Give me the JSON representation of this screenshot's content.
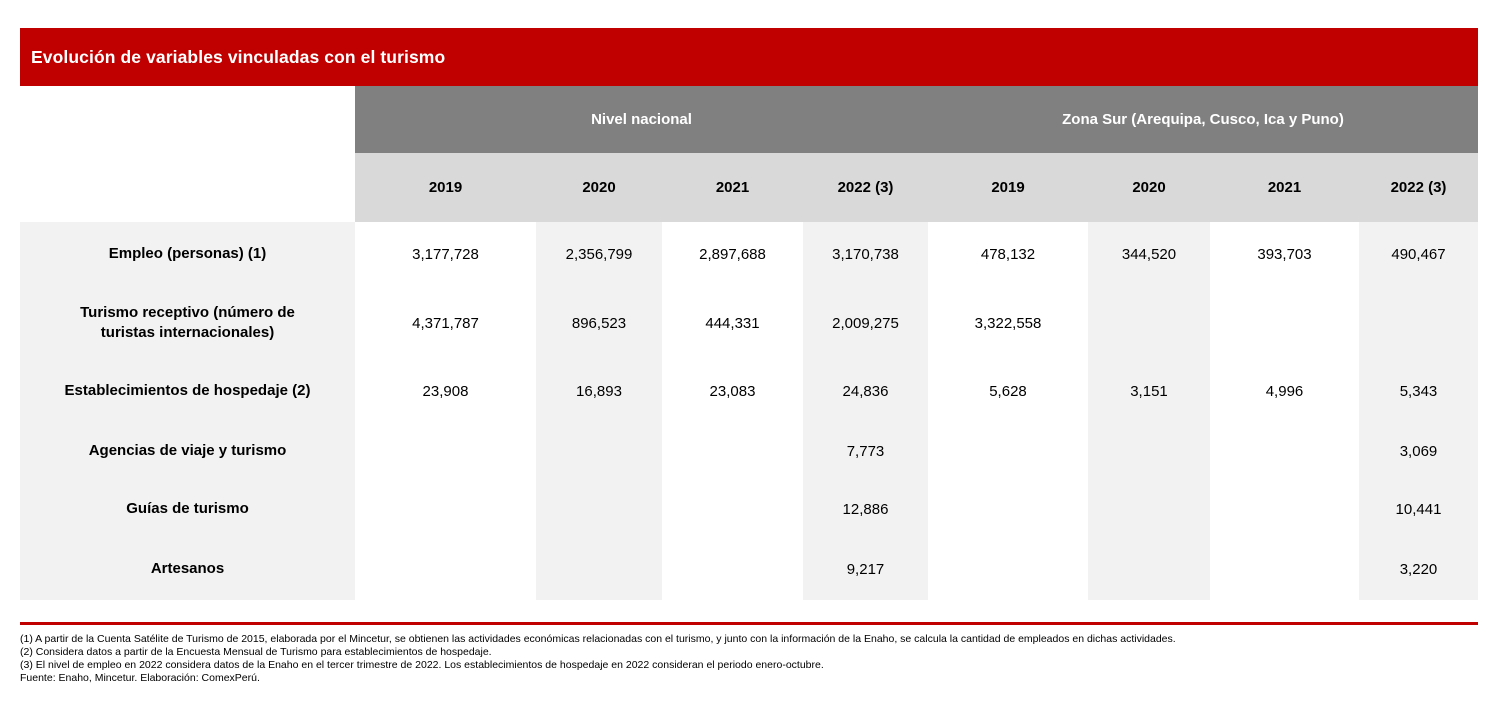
{
  "title": "Evolución de variables vinculadas con el turismo",
  "colors": {
    "title_bar_red": "#c00000",
    "group_header_gray": "#808080",
    "year_header_gray": "#d9d9d9",
    "stripe_gray": "#f2f2f2",
    "footnote_rule_red": "#c00000"
  },
  "table": {
    "groups": [
      {
        "label": "Nivel nacional"
      },
      {
        "label": "Zona Sur (Arequipa, Cusco, Ica y Puno)"
      }
    ],
    "year_headers": [
      "2019",
      "2020",
      "2021",
      "2022 (3)",
      "2019",
      "2020",
      "2021",
      "2022 (3)"
    ],
    "rows": [
      {
        "label": "Empleo (personas) (1)",
        "values": [
          "3,177,728",
          "2,356,799",
          "2,897,688",
          "3,170,738",
          "478,132",
          "344,520",
          "393,703",
          "490,467"
        ]
      },
      {
        "label": "Turismo receptivo (número de turistas internacionales)",
        "values": [
          "4,371,787",
          "896,523",
          "444,331",
          "2,009,275",
          "3,322,558",
          "",
          "",
          ""
        ]
      },
      {
        "label": "Establecimientos de hospedaje  (2)",
        "values": [
          "23,908",
          "16,893",
          "23,083",
          "24,836",
          "5,628",
          "3,151",
          "4,996",
          "5,343"
        ]
      },
      {
        "label": "Agencias de viaje y turismo",
        "values": [
          "",
          "",
          "",
          "7,773",
          "",
          "",
          "",
          "3,069"
        ]
      },
      {
        "label": "Guías de turismo",
        "values": [
          "",
          "",
          "",
          "12,886",
          "",
          "",
          "",
          "10,441"
        ]
      },
      {
        "label": "Artesanos",
        "values": [
          "",
          "",
          "",
          "9,217",
          "",
          "",
          "",
          "3,220"
        ]
      }
    ]
  },
  "footnotes": [
    "(1) A partir de la Cuenta Satélite de Turismo de 2015, elaborada por el Mincetur, se obtienen las actividades económicas relacionadas con el turismo, y junto con la información de la Enaho, se calcula la cantidad de empleados en dichas actividades.",
    "(2) Considera datos a partir de la Encuesta Mensual de Turismo para establecimientos de hospedaje.",
    "(3) El nivel de empleo en 2022 considera datos de la Enaho en el tercer trimestre de 2022. Los establecimientos de hospedaje en 2022 consideran el periodo enero-octubre.",
    "Fuente: Enaho, Mincetur. Elaboración: ComexPerú."
  ]
}
